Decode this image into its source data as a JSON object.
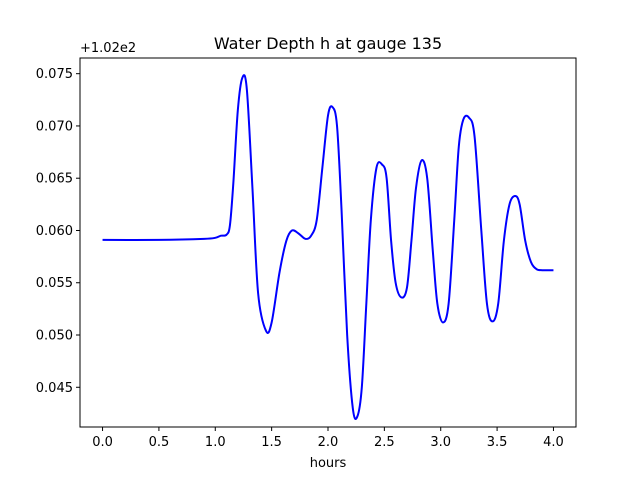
{
  "chart_data": {
    "type": "line",
    "title": "Water Depth h at gauge 135",
    "xlabel": "hours",
    "ylabel": "",
    "y_offset_label": "+1.02e2",
    "xlim": [
      -0.2,
      4.2
    ],
    "ylim": [
      0.0412,
      0.0765
    ],
    "x_ticks": [
      0.0,
      0.5,
      1.0,
      1.5,
      2.0,
      2.5,
      3.0,
      3.5,
      4.0
    ],
    "x_tick_labels": [
      "0.0",
      "0.5",
      "1.0",
      "1.5",
      "2.0",
      "2.5",
      "3.0",
      "3.5",
      "4.0"
    ],
    "y_ticks": [
      0.045,
      0.05,
      0.055,
      0.06,
      0.065,
      0.07,
      0.075
    ],
    "y_tick_labels": [
      "0.045",
      "0.050",
      "0.055",
      "0.060",
      "0.065",
      "0.070",
      "0.075"
    ],
    "grid": false,
    "series": [
      {
        "color": "#0000ff",
        "x": [
          0.0,
          0.5,
          0.9,
          1.0,
          1.05,
          1.1,
          1.13,
          1.16,
          1.2,
          1.24,
          1.28,
          1.33,
          1.38,
          1.45,
          1.5,
          1.57,
          1.63,
          1.68,
          1.74,
          1.8,
          1.85,
          1.9,
          1.95,
          2.0,
          2.04,
          2.08,
          2.12,
          2.17,
          2.22,
          2.26,
          2.3,
          2.34,
          2.38,
          2.43,
          2.48,
          2.52,
          2.56,
          2.6,
          2.65,
          2.7,
          2.74,
          2.78,
          2.83,
          2.88,
          2.93,
          2.97,
          3.02,
          3.07,
          3.12,
          3.16,
          3.2,
          3.25,
          3.3,
          3.36,
          3.41,
          3.46,
          3.51,
          3.56,
          3.61,
          3.66,
          3.7,
          3.75,
          3.8,
          3.85,
          3.9,
          3.95,
          4.0
        ],
        "y": [
          0.0591,
          0.0591,
          0.0592,
          0.0593,
          0.0595,
          0.0596,
          0.0605,
          0.0645,
          0.0715,
          0.0746,
          0.0735,
          0.064,
          0.054,
          0.0504,
          0.0512,
          0.056,
          0.059,
          0.06,
          0.0597,
          0.0592,
          0.0595,
          0.061,
          0.066,
          0.071,
          0.0718,
          0.07,
          0.062,
          0.05,
          0.043,
          0.0422,
          0.045,
          0.053,
          0.061,
          0.066,
          0.0663,
          0.065,
          0.059,
          0.055,
          0.0536,
          0.0545,
          0.059,
          0.064,
          0.0667,
          0.065,
          0.058,
          0.053,
          0.0512,
          0.053,
          0.061,
          0.068,
          0.0706,
          0.0708,
          0.069,
          0.06,
          0.053,
          0.0513,
          0.053,
          0.059,
          0.0625,
          0.0633,
          0.0625,
          0.059,
          0.057,
          0.0563,
          0.0562,
          0.0562,
          0.0562
        ]
      }
    ]
  }
}
